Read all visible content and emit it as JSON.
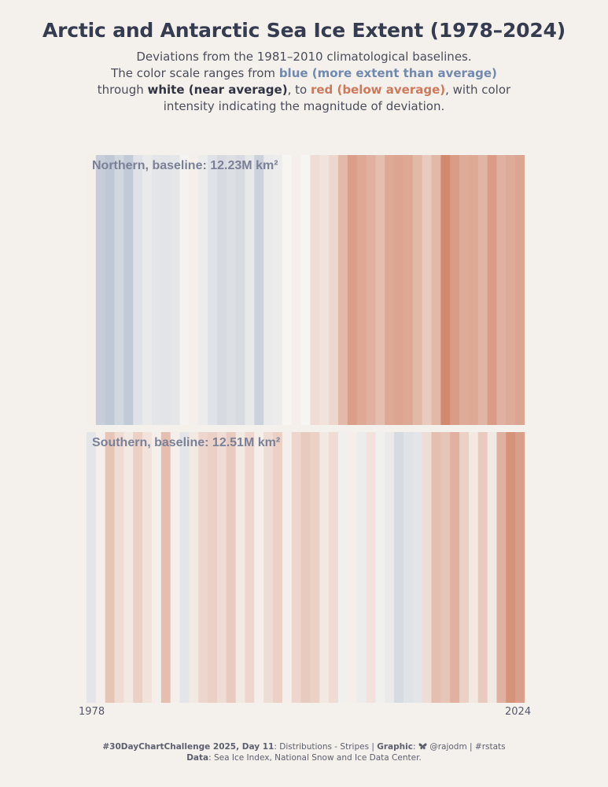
{
  "header": {
    "title": "Arctic and Antarctic Sea Ice Extent (1978–2024)",
    "subtitle_line1": "Deviations from the 1981–2010 climatological baselines.",
    "subtitle_line2_pre": "The color scale ranges from ",
    "subtitle_blue": "blue (more extent than average)",
    "subtitle_line3_pre": "through ",
    "subtitle_white": "white (near average)",
    "subtitle_line3_mid": ", to ",
    "subtitle_red": "red (below average)",
    "subtitle_line3_post": ", with color",
    "subtitle_line4": "intensity indicating the magnitude of deviation."
  },
  "colors": {
    "background": "#f4f0ec",
    "blue": "#7189ad",
    "red": "#cd7a5c",
    "neutral": "#f7f5f2",
    "title": "#363c50"
  },
  "chart_data": [
    {
      "type": "heatmap",
      "panel": "Northern, baseline: 12.23M km²",
      "x": [
        1978,
        1979,
        1980,
        1981,
        1982,
        1983,
        1984,
        1985,
        1986,
        1987,
        1988,
        1989,
        1990,
        1991,
        1992,
        1993,
        1994,
        1995,
        1996,
        1997,
        1998,
        1999,
        2000,
        2001,
        2002,
        2003,
        2004,
        2005,
        2006,
        2007,
        2008,
        2009,
        2010,
        2011,
        2012,
        2013,
        2014,
        2015,
        2016,
        2017,
        2018,
        2019,
        2020,
        2021,
        2022,
        2023,
        2024
      ],
      "values": [
        -0.05,
        0.36,
        0.42,
        0.28,
        0.4,
        0.18,
        0.1,
        0.15,
        0.16,
        0.14,
        0.02,
        -0.05,
        0.08,
        0.18,
        0.24,
        0.2,
        0.24,
        0.12,
        0.32,
        0.1,
        0.08,
        0.0,
        -0.05,
        0.0,
        -0.2,
        -0.15,
        -0.25,
        -0.48,
        -0.7,
        -0.62,
        -0.55,
        -0.45,
        -0.62,
        -0.65,
        -0.62,
        -0.5,
        -0.35,
        -0.5,
        -0.88,
        -0.72,
        -0.6,
        -0.62,
        -0.52,
        -0.72,
        -0.55,
        -0.6,
        -0.65
      ],
      "xlim": [
        1978,
        2024
      ],
      "color_scale": "blue (above average) - white (near average) - red (below average)"
    },
    {
      "type": "heatmap",
      "panel": "Southern, baseline: 12.51M km²",
      "x": [
        1978,
        1979,
        1980,
        1981,
        1982,
        1983,
        1984,
        1985,
        1986,
        1987,
        1988,
        1989,
        1990,
        1991,
        1992,
        1993,
        1994,
        1995,
        1996,
        1997,
        1998,
        1999,
        2000,
        2001,
        2002,
        2003,
        2004,
        2005,
        2006,
        2007,
        2008,
        2009,
        2010,
        2011,
        2012,
        2013,
        2014,
        2015,
        2016,
        2017,
        2018,
        2019,
        2020,
        2021,
        2022,
        2023,
        2024
      ],
      "values": [
        0.15,
        -0.05,
        -0.4,
        -0.2,
        -0.1,
        -0.3,
        -0.15,
        -0.05,
        -0.45,
        -0.05,
        0.15,
        -0.1,
        -0.25,
        -0.3,
        -0.2,
        -0.35,
        -0.1,
        -0.25,
        -0.05,
        -0.2,
        -0.3,
        -0.05,
        -0.25,
        -0.35,
        -0.3,
        -0.1,
        -0.2,
        0.05,
        -0.05,
        0.08,
        -0.15,
        0.05,
        0.1,
        0.25,
        0.18,
        0.15,
        -0.2,
        -0.45,
        -0.4,
        -0.55,
        -0.3,
        -0.1,
        -0.35,
        -0.1,
        -0.55,
        -0.8,
        -0.7
      ],
      "xlim": [
        1978,
        2024
      ],
      "color_scale": "blue (above average) - white (near average) - red (below average)"
    }
  ],
  "axis": {
    "start_label": "1978",
    "end_label": "2024"
  },
  "caption": {
    "challenge": "#30DayChartChallenge 2025, Day 11",
    "challenge_rest": ": Distributions - Stripes | ",
    "graphic_label": "Graphic",
    "graphic_rest": ": ",
    "handle": "@rajodm | #rstats",
    "data_label": "Data",
    "data_rest": ": Sea Ice Index, National Snow and Ice Data Center.",
    "icon": "butterfly-icon"
  }
}
